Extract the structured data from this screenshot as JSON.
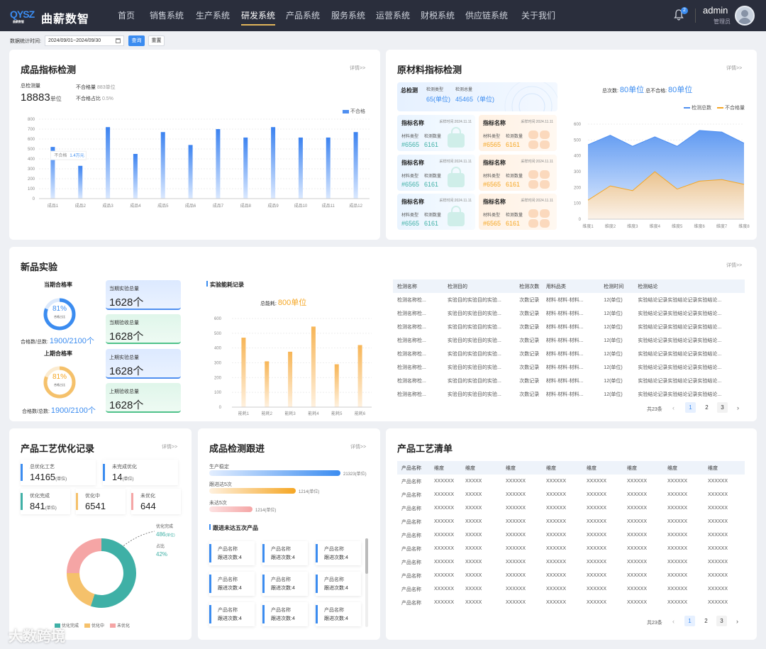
{
  "header": {
    "logo": "QYSZ",
    "logo_sub": "曲薪数智",
    "brand": "曲薪数智",
    "menu": [
      "首页",
      "销售系统",
      "生产系统",
      "研发系统",
      "产品系统",
      "服务系统",
      "运营系统",
      "财税系统",
      "供应链系统",
      "关于我们"
    ],
    "active_menu": 3,
    "notification_count": "2",
    "user_name": "admin",
    "user_role": "管理员"
  },
  "filter": {
    "label": "数据统计时间:",
    "date_range": "2024/09/01~2024/09/30",
    "query_label": "查询",
    "reset_label": "重置"
  },
  "colors": {
    "accent": "#3b8cf0",
    "orange": "#f5a623",
    "green": "#4fc28a",
    "teal": "#3fb0a6",
    "pink": "#f5a5a5"
  },
  "product_card": {
    "title": "成品指标检测",
    "more": "详情>>",
    "total_label": "总检测量",
    "total_value": "18883",
    "total_unit": "单位",
    "fail_label": "不合格量",
    "fail_value": "883",
    "fail_unit": "单位",
    "ratio_label": "不合格占比",
    "ratio_value": "0.5%",
    "tooltip": {
      "label": "不合格",
      "value": "1.4万元"
    },
    "chart_data": {
      "type": "bar",
      "categories": [
        "成品1",
        "成品2",
        "成品3",
        "成品4",
        "成品5",
        "成品6",
        "成品7",
        "成品8",
        "成品9",
        "成品10",
        "成品11",
        "成品12"
      ],
      "series": [
        {
          "name": "不合格",
          "values": [
            520,
            330,
            720,
            450,
            670,
            540,
            700,
            615,
            720,
            615,
            615,
            670
          ]
        }
      ],
      "ylim": [
        0,
        800
      ],
      "yticks": [
        0,
        100,
        200,
        300,
        400,
        500,
        600,
        700,
        800
      ],
      "legend": "top-right"
    }
  },
  "material_card": {
    "title": "原材料指标检测",
    "more": "详情>>",
    "total_title": "总检测",
    "type_label": "检测类型",
    "type_value": "65(单位)",
    "total_amount_label": "检测总量",
    "total_amount_value": "45465（单位)",
    "summary_count_label": "总次数:",
    "summary_count_value": "80单位",
    "summary_fail_label": "总不合格:",
    "summary_fail_value": "80单位",
    "items": [
      {
        "title": "指标名称",
        "time": "采样时间:2024.11.11",
        "l1": "材料类型",
        "l2": "检测数量",
        "v1": "#6565",
        "v2": "6161",
        "color": "blue"
      },
      {
        "title": "指标名称",
        "time": "采样时间:2024.11.11",
        "l1": "材料类型",
        "l2": "检测数量",
        "v1": "#6565",
        "v2": "6161",
        "color": "orange"
      },
      {
        "title": "指标名称",
        "time": "采样时间:2024.11.11",
        "l1": "材料类型",
        "l2": "检测数量",
        "v1": "#6565",
        "v2": "6161",
        "color": "blue"
      },
      {
        "title": "指标名称",
        "time": "采样时间:2024.11.11",
        "l1": "材料类型",
        "l2": "检测数量",
        "v1": "#6565",
        "v2": "6161",
        "color": "orange"
      },
      {
        "title": "指标名称",
        "time": "采样时间:2024.11.11",
        "l1": "材料类型",
        "l2": "检测数量",
        "v1": "#6565",
        "v2": "6161",
        "color": "blue"
      },
      {
        "title": "指标名称",
        "time": "采样时间:2024.11.11",
        "l1": "材料类型",
        "l2": "检测数量",
        "v1": "#6565",
        "v2": "6161",
        "color": "orange"
      }
    ],
    "chart_data": {
      "type": "area",
      "categories": [
        "维度1",
        "维度2",
        "维度3",
        "维度4",
        "维度5",
        "维度6",
        "维度7",
        "维度8"
      ],
      "series": [
        {
          "name": "检测总数",
          "values": [
            470,
            530,
            460,
            520,
            460,
            560,
            550,
            480
          ]
        },
        {
          "name": "不合格量",
          "values": [
            120,
            210,
            180,
            300,
            190,
            240,
            250,
            220
          ]
        }
      ],
      "ylim": [
        0,
        600
      ],
      "yticks": [
        0,
        100,
        200,
        300,
        400,
        500,
        600
      ],
      "legend": "top-right"
    }
  },
  "experiment_card": {
    "title": "新品实验",
    "more": "详情>>",
    "current_title": "当期合格率",
    "current_rate": "81%",
    "current_rate_fraction": 0.81,
    "rate_sub": "合格占比",
    "current_ratio_label": "合格数/总数:",
    "current_ratio": "1900/2100个",
    "prev_title": "上期合格率",
    "prev_rate": "81%",
    "prev_rate_fraction": 0.81,
    "prev_ratio_label": "合格数/总数:",
    "prev_ratio": "1900/2100个",
    "stats": [
      {
        "label": "当期实验总量",
        "value": "1628个",
        "color": "blue"
      },
      {
        "label": "当期验收总量",
        "value": "1628个",
        "color": "green"
      },
      {
        "label": "上期实验总量",
        "value": "1628个",
        "color": "blue"
      },
      {
        "label": "上期验收总量",
        "value": "1628个",
        "color": "green"
      }
    ],
    "energy_title": "实验能耗记录",
    "energy_total_label": "总能耗:",
    "energy_total_value": "800单位",
    "chart_data": {
      "type": "bar",
      "categories": [
        "能耗1",
        "能耗2",
        "能耗3",
        "能耗4",
        "能耗5",
        "能耗6"
      ],
      "values": [
        470,
        310,
        375,
        545,
        290,
        420
      ],
      "ylim": [
        0,
        600
      ],
      "yticks": [
        0,
        100,
        200,
        300,
        400,
        500,
        600
      ]
    },
    "table": {
      "headers": [
        "检测名称",
        "检测目的",
        "检测次数",
        "用料品类",
        "检测时间",
        "检测结论"
      ],
      "rows": [
        [
          "检测名称检...",
          "实验目的实验目的实验...",
          "次数记录",
          "材料·材料·材料...",
          "12(单位)",
          "实验结论记录实验结论记录实验结论..."
        ],
        [
          "检测名称检...",
          "实验目的实验目的实验...",
          "次数记录",
          "材料·材料·材料...",
          "12(单位)",
          "实验结论记录实验结论记录实验结论..."
        ],
        [
          "检测名称检...",
          "实验目的实验目的实验...",
          "次数记录",
          "材料·材料·材料...",
          "12(单位)",
          "实验结论记录实验结论记录实验结论..."
        ],
        [
          "检测名称检...",
          "实验目的实验目的实验...",
          "次数记录",
          "材料·材料·材料...",
          "12(单位)",
          "实验结论记录实验结论记录实验结论..."
        ],
        [
          "检测名称检...",
          "实验目的实验目的实验...",
          "次数记录",
          "材料·材料·材料...",
          "12(单位)",
          "实验结论记录实验结论记录实验结论..."
        ],
        [
          "检测名称检...",
          "实验目的实验目的实验...",
          "次数记录",
          "材料·材料·材料...",
          "12(单位)",
          "实验结论记录实验结论记录实验结论..."
        ],
        [
          "检测名称检...",
          "实验目的实验目的实验...",
          "次数记录",
          "材料·材料·材料...",
          "12(单位)",
          "实验结论记录实验结论记录实验结论..."
        ],
        [
          "检测名称检...",
          "实验目的实验目的实验...",
          "次数记录",
          "材料·材料·材料...",
          "12(单位)",
          "实验结论记录实验结论记录实验结论..."
        ]
      ],
      "total": "共23条",
      "pages": [
        "1",
        "2",
        "3"
      ],
      "current_page": 1
    }
  },
  "process_card": {
    "title": "产品工艺优化记录",
    "more": "详情>>",
    "total_label": "总优化工艺",
    "total_value": "14165",
    "unfinished_label": "未完成优化",
    "unfinished_value": "14",
    "unit": "(单位)",
    "done_label": "优化完成",
    "done_value": "841",
    "doing_label": "优化中",
    "doing_value": "6541",
    "todo_label": "未优化",
    "todo_value": "644",
    "callout_label": "优化完成",
    "callout_value": "486",
    "callout_unit": "(单位)",
    "callout_ratio_label": "占比",
    "callout_ratio": "42%",
    "chart_data": {
      "type": "pie",
      "labels": [
        "优化完成",
        "优化中",
        "未优化"
      ],
      "values": [
        55,
        20,
        25
      ],
      "legend": "bottom"
    }
  },
  "tracking_card": {
    "title": "成品检测跟进",
    "more": "详情>>",
    "progress": [
      {
        "label": "生产稳定",
        "value": "21323(单位)",
        "fraction": 1.0,
        "color": "blue"
      },
      {
        "label": "跟进达5次",
        "value": "1214(单位)",
        "fraction": 0.66,
        "color": "orange"
      },
      {
        "label": "未达5次",
        "value": "1214(单位)",
        "fraction": 0.33,
        "color": "pink"
      }
    ],
    "sub_title": "跟进未达五次产品",
    "items": [
      {
        "name": "产品名称",
        "count": "跟进次数:4"
      },
      {
        "name": "产品名称",
        "count": "跟进次数:4"
      },
      {
        "name": "产品名称",
        "count": "跟进次数:4"
      },
      {
        "name": "产品名称",
        "count": "跟进次数:4"
      },
      {
        "name": "产品名称",
        "count": "跟进次数:4"
      },
      {
        "name": "产品名称",
        "count": "跟进次数:4"
      },
      {
        "name": "产品名称",
        "count": "跟进次数:4"
      },
      {
        "name": "产品名称",
        "count": "跟进次数:4"
      },
      {
        "name": "产品名称",
        "count": "跟进次数:4"
      }
    ]
  },
  "process_list_card": {
    "title": "产品工艺清单",
    "headers": [
      "产品名称",
      "维度",
      "维度",
      "维度",
      "维度",
      "维度",
      "维度",
      "维度",
      "维度"
    ],
    "rows": [
      [
        "产品名称",
        "XXXXXX",
        "XXXXX",
        "XXXXXX",
        "XXXXXX",
        "XXXXXX",
        "XXXXXX",
        "XXXXXX",
        "XXXXXX"
      ],
      [
        "产品名称",
        "XXXXXX",
        "XXXXX",
        "XXXXXX",
        "XXXXXX",
        "XXXXXX",
        "XXXXXX",
        "XXXXXX",
        "XXXXXX"
      ],
      [
        "产品名称",
        "XXXXXX",
        "XXXXX",
        "XXXXXX",
        "XXXXXX",
        "XXXXXX",
        "XXXXXX",
        "XXXXXX",
        "XXXXXX"
      ],
      [
        "产品名称",
        "XXXXXX",
        "XXXXX",
        "XXXXXX",
        "XXXXXX",
        "XXXXXX",
        "XXXXXX",
        "XXXXXX",
        "XXXXXX"
      ],
      [
        "产品名称",
        "XXXXXX",
        "XXXXX",
        "XXXXXX",
        "XXXXXX",
        "XXXXXX",
        "XXXXXX",
        "XXXXXX",
        "XXXXXX"
      ],
      [
        "产品名称",
        "XXXXXX",
        "XXXXX",
        "XXXXXX",
        "XXXXXX",
        "XXXXXX",
        "XXXXXX",
        "XXXXXX",
        "XXXXXX"
      ],
      [
        "产品名称",
        "XXXXXX",
        "XXXXX",
        "XXXXXX",
        "XXXXXX",
        "XXXXXX",
        "XXXXXX",
        "XXXXXX",
        "XXXXXX"
      ],
      [
        "产品名称",
        "XXXXXX",
        "XXXXX",
        "XXXXXX",
        "XXXXXX",
        "XXXXXX",
        "XXXXXX",
        "XXXXXX",
        "XXXXXX"
      ],
      [
        "产品名称",
        "XXXXXX",
        "XXXXX",
        "XXXXXX",
        "XXXXXX",
        "XXXXXX",
        "XXXXXX",
        "XXXXXX",
        "XXXXXX"
      ],
      [
        "产品名称",
        "XXXXXX",
        "XXXXX",
        "XXXXXX",
        "XXXXXX",
        "XXXXXX",
        "XXXXXX",
        "XXXXXX",
        "XXXXXX"
      ]
    ],
    "total": "共23条",
    "pages": [
      "1",
      "2",
      "3"
    ],
    "current_page": 1
  },
  "watermark": "大数跨境"
}
